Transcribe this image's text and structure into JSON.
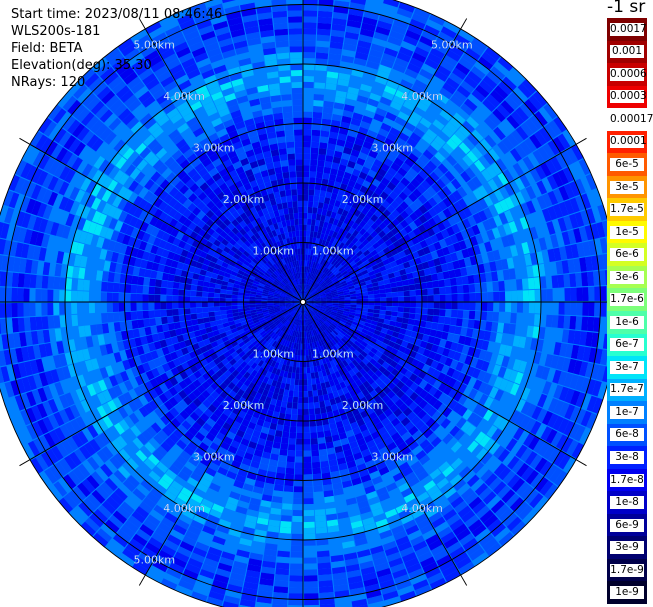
{
  "header": {
    "start_time": "Start time: 2023/08/11 08:46:46",
    "instrument": "WLS200s-181",
    "field": "Field: BETA",
    "elevation": "Elevation(deg): 35.30",
    "nrays": "NRays: 120"
  },
  "colorbar": {
    "unit_title": "-1 sr",
    "labels": [
      "0.0017",
      "0.001",
      "0.0006",
      "0.0003",
      "0.00017",
      "0.0001",
      "6e-5",
      "3e-5",
      "1.7e-5",
      "1e-5",
      "6e-6",
      "3e-6",
      "1.7e-6",
      "1e-6",
      "6e-7",
      "3e-7",
      "1.7e-7",
      "1e-7",
      "6e-8",
      "3e-8",
      "1.7e-8",
      "1e-8",
      "6e-9",
      "3e-9",
      "1.7e-9",
      "1e-9"
    ],
    "colors": [
      "#7f0000",
      "#a00000",
      "#c80000",
      "#ee0000",
      "#ffffff",
      "#ff2000",
      "#ff5a00",
      "#ff9400",
      "#ffca00",
      "#fffa00",
      "#d4ff23",
      "#a6ff51",
      "#7dff7a",
      "#4effa9",
      "#27ffd0",
      "#00e4f8",
      "#00b0ff",
      "#0080ff",
      "#0050ff",
      "#0020ff",
      "#0000f0",
      "#0000c8",
      "#00009a",
      "#000070",
      "#00004a",
      "#00002c"
    ]
  },
  "chart_data": {
    "type": "ppi",
    "title": "",
    "field": "BETA",
    "elevation_deg": 35.3,
    "n_rays": 120,
    "range_rings_km": [
      1,
      2,
      3,
      4,
      5
    ],
    "max_range_km": 5.3,
    "spoke_angles_deg": [
      0,
      30,
      60,
      90,
      120,
      150,
      180,
      210,
      240,
      270,
      300,
      330
    ],
    "ring_labels": [
      {
        "text": "1.00km",
        "ring_km": 1,
        "angle_deg": 330
      },
      {
        "text": "1.00km",
        "ring_km": 1,
        "angle_deg": 30
      },
      {
        "text": "1.00km",
        "ring_km": 1,
        "angle_deg": 210
      },
      {
        "text": "1.00km",
        "ring_km": 1,
        "angle_deg": 150
      },
      {
        "text": "2.00km",
        "ring_km": 2,
        "angle_deg": 330
      },
      {
        "text": "2.00km",
        "ring_km": 2,
        "angle_deg": 30
      },
      {
        "text": "2.00km",
        "ring_km": 2,
        "angle_deg": 210
      },
      {
        "text": "2.00km",
        "ring_km": 2,
        "angle_deg": 150
      },
      {
        "text": "3.00km",
        "ring_km": 3,
        "angle_deg": 330
      },
      {
        "text": "3.00km",
        "ring_km": 3,
        "angle_deg": 30
      },
      {
        "text": "3.00km",
        "ring_km": 3,
        "angle_deg": 210
      },
      {
        "text": "3.00km",
        "ring_km": 3,
        "angle_deg": 150
      },
      {
        "text": "4.00km",
        "ring_km": 4,
        "angle_deg": 330
      },
      {
        "text": "4.00km",
        "ring_km": 4,
        "angle_deg": 30
      },
      {
        "text": "4.00km",
        "ring_km": 4,
        "angle_deg": 210
      },
      {
        "text": "4.00km",
        "ring_km": 4,
        "angle_deg": 150
      },
      {
        "text": "5.00km",
        "ring_km": 5,
        "angle_deg": 330
      },
      {
        "text": "5.00km",
        "ring_km": 5,
        "angle_deg": 30
      },
      {
        "text": "5.00km",
        "ring_km": 5,
        "angle_deg": 210
      }
    ],
    "range_profile": [
      {
        "range_km": 0.5,
        "level": "1e-8"
      },
      {
        "range_km": 1.0,
        "level": "1.7e-8"
      },
      {
        "range_km": 2.0,
        "level": "1.7e-8"
      },
      {
        "range_km": 3.0,
        "level": "3e-8"
      },
      {
        "range_km": 3.8,
        "level": "1.7e-7"
      },
      {
        "range_km": 4.3,
        "level": "6e-8"
      },
      {
        "range_km": 4.8,
        "level": "3e-8"
      },
      {
        "range_km": 5.2,
        "level": "6e-8"
      }
    ]
  }
}
